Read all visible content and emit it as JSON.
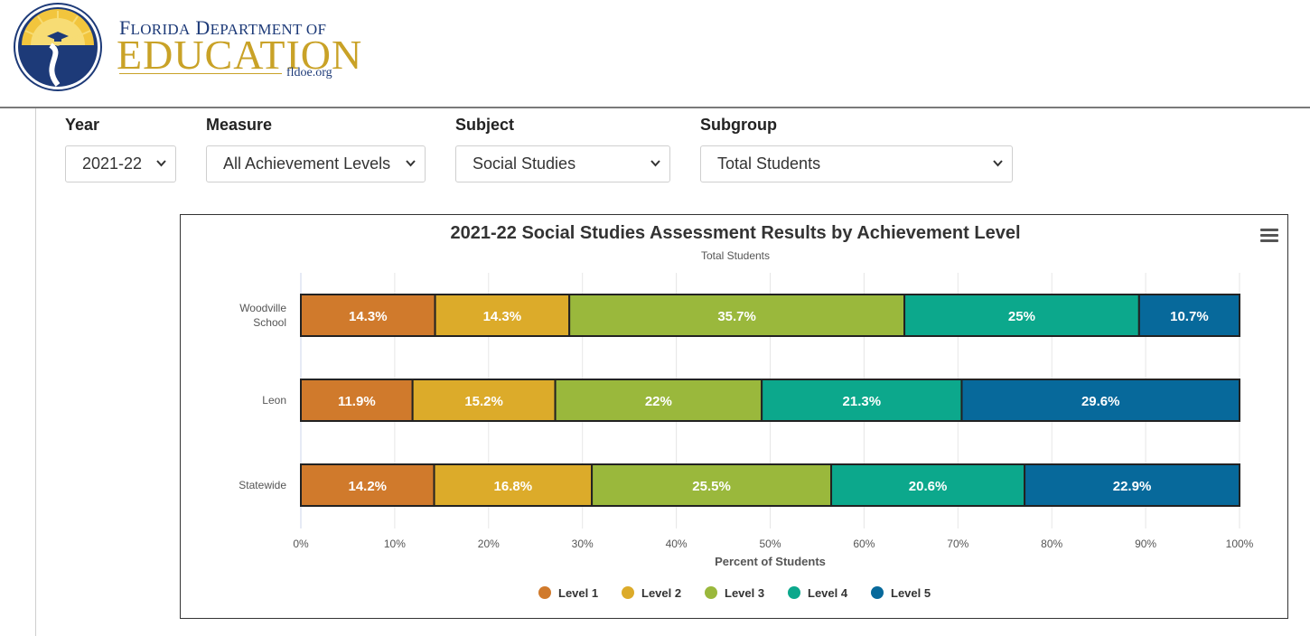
{
  "header": {
    "logo_line1": "Florida Department of",
    "logo_line2": "EDUCATION",
    "logo_url": "fldoe.org"
  },
  "filters": {
    "year": {
      "label": "Year",
      "value": "2021-22"
    },
    "measure": {
      "label": "Measure",
      "value": "All Achievement Levels"
    },
    "subject": {
      "label": "Subject",
      "value": "Social Studies"
    },
    "subgroup": {
      "label": "Subgroup",
      "value": "Total Students"
    }
  },
  "icons": {
    "menu": "hamburger-menu-icon",
    "dropdown": "chevron-down-icon"
  },
  "chart_data": {
    "type": "bar",
    "orientation": "horizontal",
    "stacked": true,
    "title": "2021-22 Social Studies Assessment Results by Achievement Level",
    "subtitle": "Total Students",
    "xlabel": "Percent of Students",
    "ylabel": "",
    "xlim": [
      0,
      100
    ],
    "x_ticks": [
      "0%",
      "10%",
      "20%",
      "30%",
      "40%",
      "50%",
      "60%",
      "70%",
      "80%",
      "90%",
      "100%"
    ],
    "grid": true,
    "legend_position": "bottom-center",
    "categories": [
      {
        "lines": [
          "Woodville",
          "School"
        ]
      },
      {
        "lines": [
          "Leon"
        ]
      },
      {
        "lines": [
          "Statewide"
        ]
      }
    ],
    "series": [
      {
        "name": "Level 1",
        "color": "#d07a2c",
        "values": [
          14.3,
          11.9,
          14.2
        ]
      },
      {
        "name": "Level 2",
        "color": "#dcab2a",
        "values": [
          14.3,
          15.2,
          16.8
        ]
      },
      {
        "name": "Level 3",
        "color": "#9ab83c",
        "values": [
          35.7,
          22,
          25.5
        ]
      },
      {
        "name": "Level 4",
        "color": "#0ca88c",
        "values": [
          25,
          21.3,
          20.6
        ]
      },
      {
        "name": "Level 5",
        "color": "#07699b",
        "values": [
          10.7,
          29.6,
          22.9
        ]
      }
    ]
  }
}
